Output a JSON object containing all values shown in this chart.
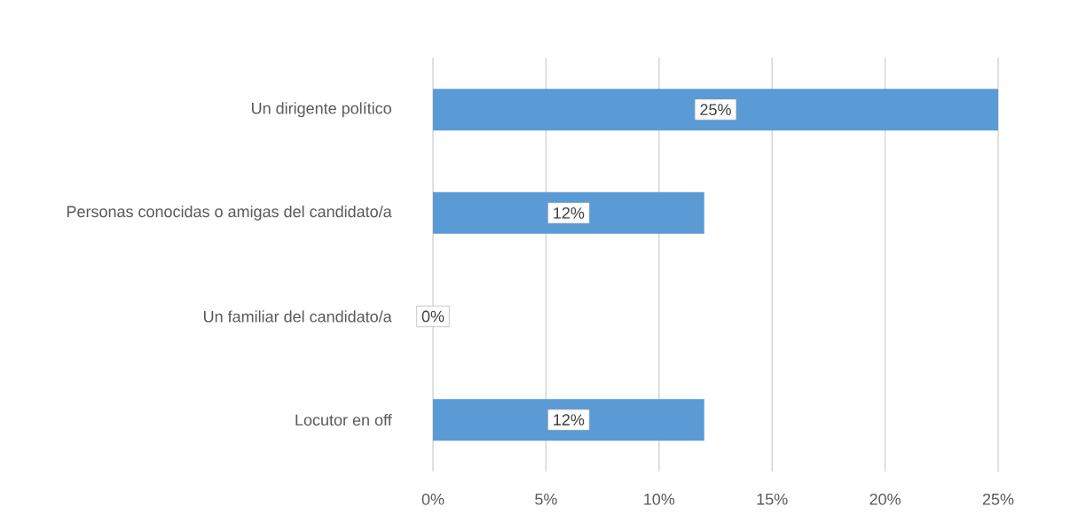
{
  "chart_data": {
    "type": "bar",
    "orientation": "horizontal",
    "categories": [
      "Un dirigente político",
      "Personas conocidas o amigas del candidato/a",
      "Un familiar del candidato/a",
      "Locutor en off"
    ],
    "values": [
      25,
      12,
      0,
      12
    ],
    "value_labels": [
      "25%",
      "12%",
      "0%",
      "12%"
    ],
    "color": "#5b9bd5",
    "xlim": [
      0,
      25
    ],
    "xticks": [
      {
        "value": 0,
        "label": "0%"
      },
      {
        "value": 5,
        "label": "5%"
      },
      {
        "value": 10,
        "label": "10%"
      },
      {
        "value": 15,
        "label": "15%"
      },
      {
        "value": 20,
        "label": "20%"
      },
      {
        "value": 25,
        "label": "25%"
      }
    ],
    "grid": "x"
  }
}
